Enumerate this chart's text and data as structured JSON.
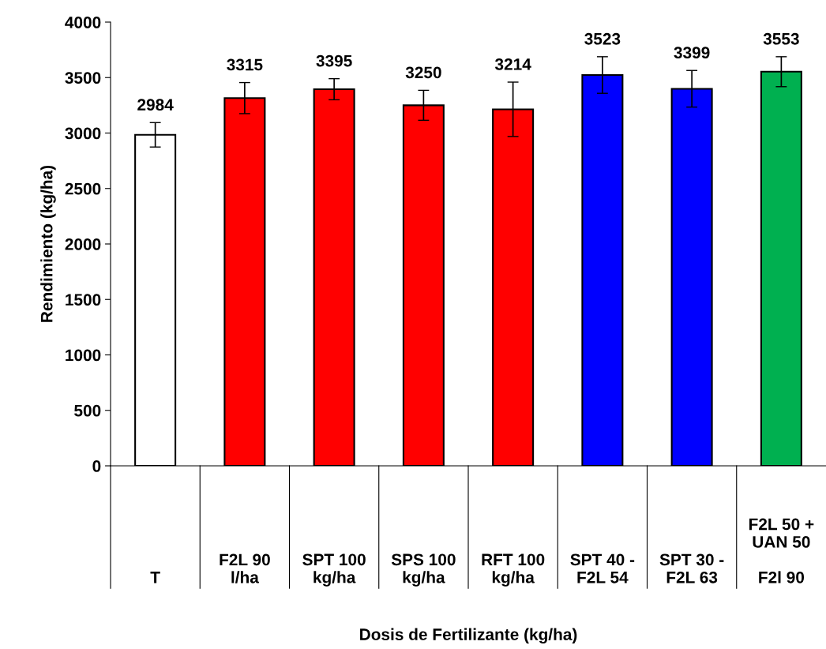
{
  "chart_data": {
    "type": "bar",
    "categories": [
      "T",
      "F2L 90\nl/ha",
      "SPT 100\nkg/ha",
      "SPS 100\nkg/ha",
      "RFT 100\nkg/ha",
      "SPT 40 -\nF2L 54",
      "SPT 30 -\nF2L 63",
      "F2L 50 +\nUAN 50\n\nF2l 90"
    ],
    "values": [
      2984,
      3315,
      3395,
      3250,
      3214,
      3523,
      3399,
      3553
    ],
    "colors": [
      "#ffffff",
      "#ff0000",
      "#ff0000",
      "#ff0000",
      "#ff0000",
      "#0000ff",
      "#0000ff",
      "#00b050"
    ],
    "errors": [
      110,
      140,
      95,
      135,
      245,
      165,
      165,
      135
    ],
    "data_labels": true,
    "xlabel": "Dosis de Fertilizante (kg/ha)",
    "ylabel": "Rendimiento (kg/ha)",
    "ylim": [
      0,
      4000
    ],
    "yticks": [
      0,
      500,
      1000,
      1500,
      2000,
      2500,
      3000,
      3500,
      4000
    ],
    "grid": false,
    "legend": false
  }
}
